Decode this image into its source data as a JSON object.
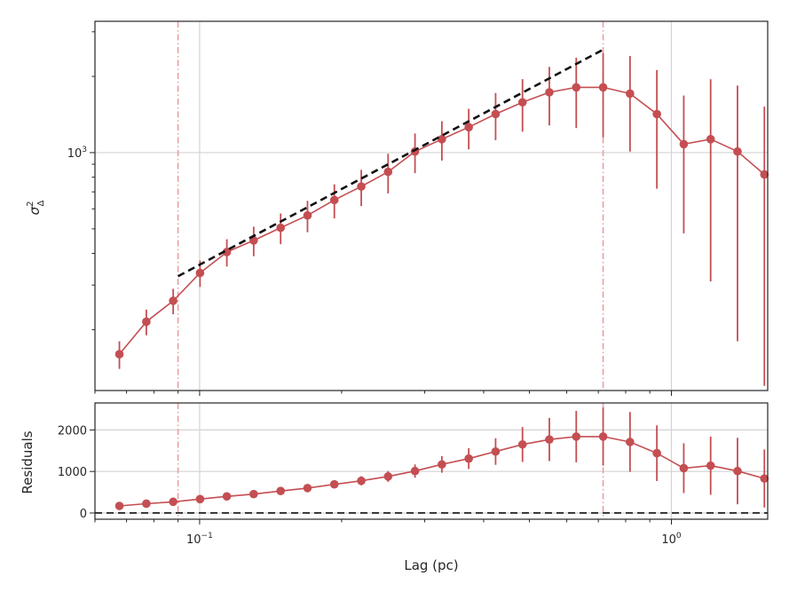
{
  "chart_data": [
    {
      "type": "line",
      "panel": "structure function",
      "xscale": "log",
      "yscale": "log",
      "xlim": [
        0.06,
        1.6
      ],
      "ylim": [
        115,
        3300
      ],
      "ylabel_main": "σ",
      "ylabel_sup": "2",
      "ylabel_sub": "Δ",
      "yticks": [
        {
          "value": 1000,
          "base": "10",
          "exp": "3"
        }
      ],
      "grid": "x and y at major ticks",
      "x": [
        0.0676,
        0.0771,
        0.0879,
        0.1002,
        0.1142,
        0.1302,
        0.1485,
        0.1693,
        0.193,
        0.2201,
        0.2509,
        0.2861,
        0.3262,
        0.3719,
        0.424,
        0.4835,
        0.5512,
        0.6285,
        0.7166,
        0.8171,
        0.9316,
        1.0622,
        1.2111,
        1.3808,
        1.5743
      ],
      "series": [
        {
          "color": "#c44e52",
          "y": [
            160,
            215,
            260,
            335,
            405,
            450,
            505,
            565,
            650,
            735,
            840,
            1010,
            1130,
            1260,
            1420,
            1580,
            1730,
            1810,
            1810,
            1710,
            1420,
            1080,
            1130,
            1010,
            820
          ],
          "err": [
            20,
            25,
            30,
            40,
            50,
            60,
            70,
            80,
            100,
            120,
            150,
            180,
            200,
            230,
            300,
            370,
            450,
            560,
            660,
            700,
            700,
            600,
            820,
            830,
            700
          ]
        }
      ],
      "fit_line": {
        "color": "#111111",
        "style": "dashed",
        "x": [
          0.09,
          0.7166
        ],
        "y": [
          325,
          2550
        ]
      },
      "vlines": [
        {
          "x": 0.09,
          "color": "#e8a0a3",
          "style": "dash-dot"
        },
        {
          "x": 0.7166,
          "color": "#e8a0a3",
          "style": "dash-dot"
        }
      ]
    },
    {
      "type": "line",
      "panel": "residuals",
      "xscale": "log",
      "xlim": [
        0.06,
        1.6
      ],
      "ylim": [
        -150,
        2650
      ],
      "ylabel": "Residuals",
      "xlabel": "Lag (pc)",
      "yticks": [
        0,
        1000,
        2000
      ],
      "xticks": [
        {
          "value": 0.1,
          "base": "10",
          "exp": "−1"
        },
        {
          "value": 1,
          "base": "10",
          "exp": "0"
        }
      ],
      "grid": "x and y at major ticks",
      "hline": {
        "y": 0,
        "color": "#111111",
        "style": "dashed"
      },
      "x": [
        0.0676,
        0.0771,
        0.0879,
        0.1002,
        0.1142,
        0.1302,
        0.1485,
        0.1693,
        0.193,
        0.2201,
        0.2509,
        0.2861,
        0.3262,
        0.3719,
        0.424,
        0.4835,
        0.5512,
        0.6285,
        0.7166,
        0.8171,
        0.9316,
        1.0622,
        1.2111,
        1.3808,
        1.5743
      ],
      "series": [
        {
          "color": "#c44e52",
          "y": [
            170,
            225,
            270,
            335,
            400,
            455,
            530,
            600,
            690,
            775,
            880,
            1010,
            1170,
            1310,
            1480,
            1650,
            1770,
            1840,
            1840,
            1710,
            1440,
            1080,
            1140,
            1010,
            830
          ],
          "err": [
            40,
            40,
            40,
            50,
            50,
            60,
            60,
            70,
            90,
            110,
            130,
            160,
            200,
            250,
            320,
            420,
            520,
            620,
            700,
            720,
            670,
            600,
            700,
            800,
            700
          ]
        }
      ],
      "vlines": [
        {
          "x": 0.09,
          "color": "#e8a0a3",
          "style": "dash-dot"
        },
        {
          "x": 0.7166,
          "color": "#e8a0a3",
          "style": "dash-dot"
        }
      ]
    }
  ]
}
